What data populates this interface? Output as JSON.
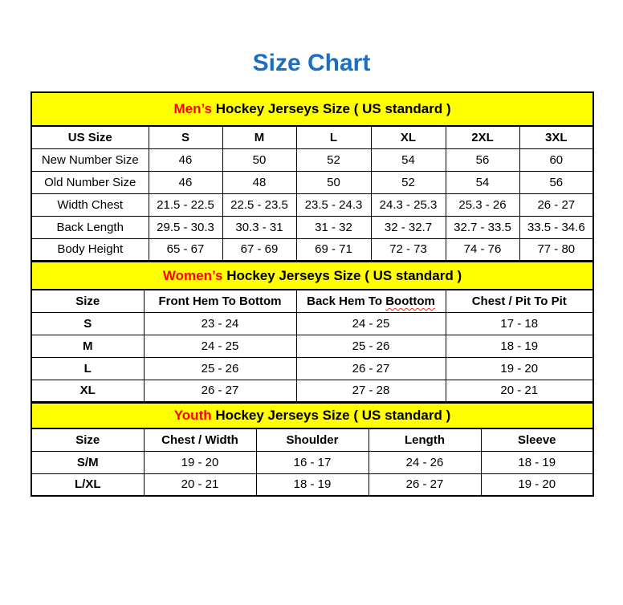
{
  "page": {
    "title": "Size Chart"
  },
  "colors": {
    "title_blue": "#1B6FC0",
    "highlight_red": "#FF0000",
    "section_yellow": "#FFFF00",
    "grid_black": "#000000",
    "typo_underline_red": "#E0301E"
  },
  "tables": [
    {
      "name": "mens",
      "section": {
        "highlight": "Men’s",
        "rest": " Hockey Jerseys Size ( US standard )"
      },
      "columns": [
        "US Size",
        "S",
        "M",
        "L",
        "XL",
        "2XL",
        "3XL"
      ],
      "rows": [
        {
          "label": "New Number Size",
          "values": [
            "46",
            "50",
            "52",
            "54",
            "56",
            "60"
          ]
        },
        {
          "label": "Old Number Size",
          "values": [
            "46",
            "48",
            "50",
            "52",
            "54",
            "56"
          ]
        },
        {
          "label": "Width Chest",
          "values": [
            "21.5 - 22.5",
            "22.5 - 23.5",
            "23.5 - 24.3",
            "24.3 - 25.3",
            "25.3 - 26",
            "26 - 27"
          ]
        },
        {
          "label": "Back Length",
          "values": [
            "29.5 - 30.3",
            "30.3 - 31",
            "31 - 32",
            "32 - 32.7",
            "32.7 - 33.5",
            "33.5 - 34.6"
          ]
        },
        {
          "label": "Body Height",
          "values": [
            "65 - 67",
            "67 - 69",
            "69 - 71",
            "72 - 73",
            "74 - 76",
            "77 - 80"
          ]
        }
      ]
    },
    {
      "name": "womens",
      "section": {
        "highlight": "Women’s",
        "rest": " Hockey Jerseys Size ( US standard )"
      },
      "columns": [
        "Size",
        "Front Hem To Bottom",
        "Back Hem To Boottom",
        "Chest / Pit To Pit"
      ],
      "typo": {
        "column_index": 2,
        "prefix": "Back Hem To ",
        "word": "Boottom"
      },
      "rows": [
        {
          "label": "S",
          "values": [
            "23 - 24",
            "24 - 25",
            "17 - 18"
          ]
        },
        {
          "label": "M",
          "values": [
            "24 - 25",
            "25 - 26",
            "18 - 19"
          ]
        },
        {
          "label": "L",
          "values": [
            "25 - 26",
            "26 - 27",
            "19 - 20"
          ]
        },
        {
          "label": "XL",
          "values": [
            "26 - 27",
            "27 - 28",
            "20 - 21"
          ]
        }
      ]
    },
    {
      "name": "youth",
      "section": {
        "highlight": "Youth",
        "rest": " Hockey Jerseys Size ( US standard )"
      },
      "columns": [
        "Size",
        "Chest / Width",
        "Shoulder",
        "Length",
        "Sleeve"
      ],
      "rows": [
        {
          "label": "S/M",
          "values": [
            "19 - 20",
            "16 - 17",
            "24 - 26",
            "18 - 19"
          ]
        },
        {
          "label": "L/XL",
          "values": [
            "20 - 21",
            "18 - 19",
            "26 - 27",
            "19 - 20"
          ]
        }
      ]
    }
  ]
}
